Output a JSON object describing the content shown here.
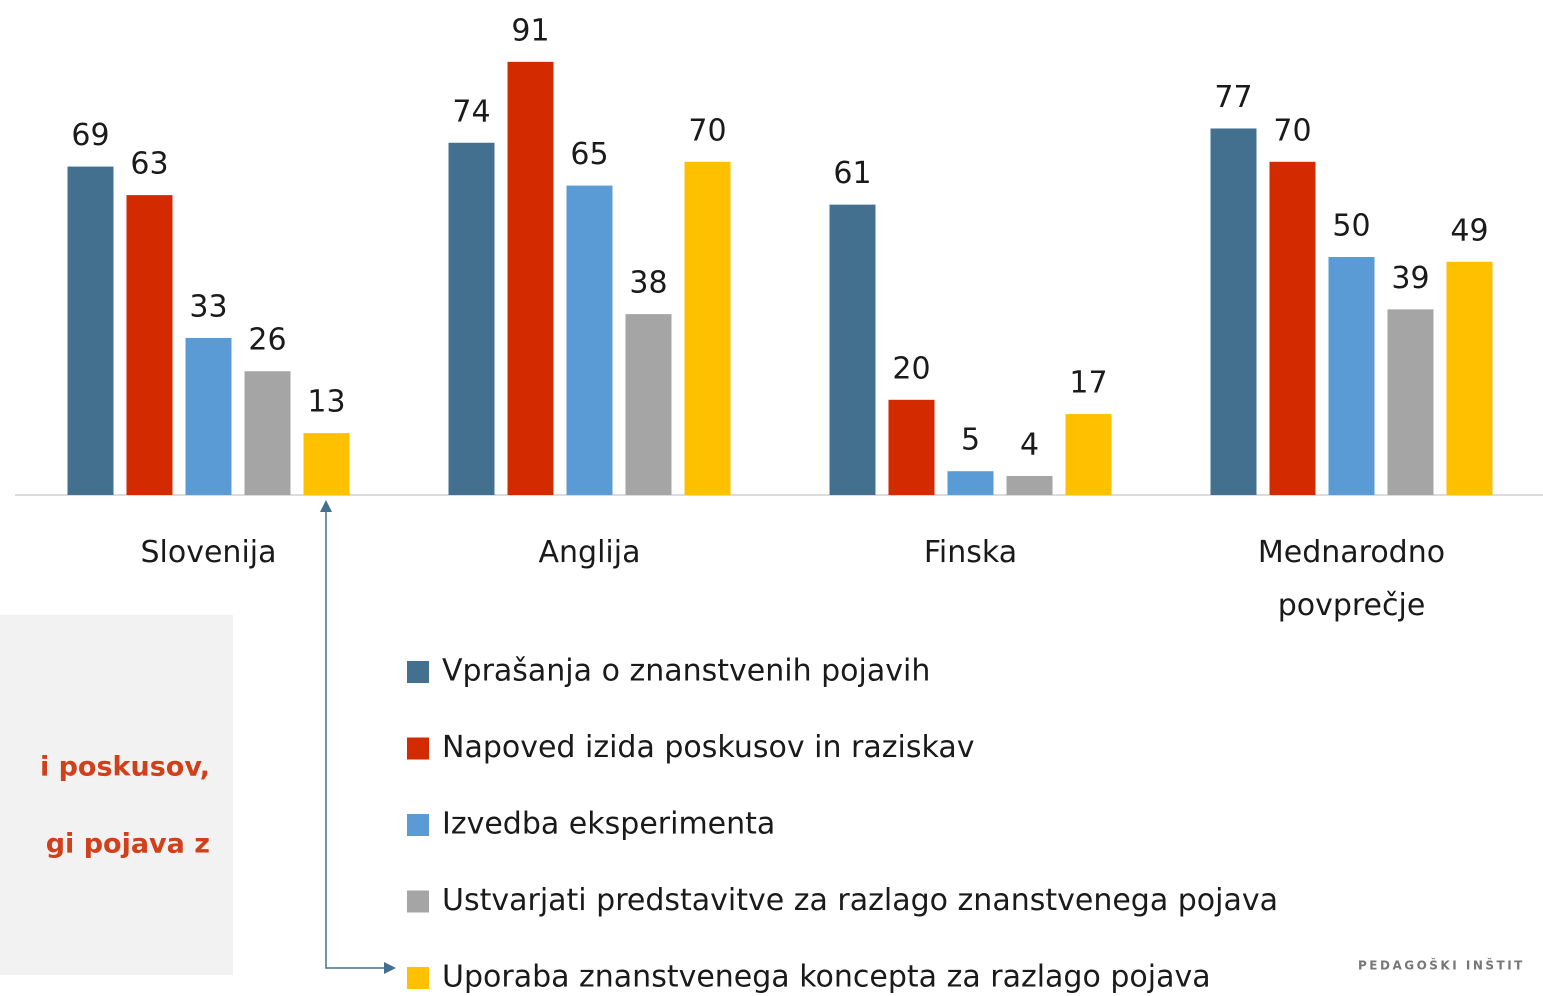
{
  "chart_data": {
    "type": "bar",
    "categories": [
      "Slovenija",
      "Anglija",
      "Finska",
      "Mednarodno povprečje"
    ],
    "series": [
      {
        "name": "Vprašanja o znanstvenih pojavih",
        "color": "#43708f",
        "values": [
          69,
          74,
          61,
          77
        ]
      },
      {
        "name": "Napoved izida poskusov in raziskav",
        "color": "#d42a00",
        "values": [
          63,
          91,
          20,
          70
        ]
      },
      {
        "name": "Izvedba eksperimenta",
        "color": "#5b9bd5",
        "values": [
          33,
          65,
          5,
          50
        ]
      },
      {
        "name": "Ustvarjati predstavitve za razlago znanstvenega pojava",
        "color": "#a5a5a5",
        "values": [
          26,
          38,
          4,
          39
        ]
      },
      {
        "name": "Uporaba znanstvenega koncepta za razlago pojava",
        "color": "#ffc000",
        "values": [
          13,
          70,
          17,
          49
        ]
      }
    ],
    "ylim": [
      0,
      100
    ],
    "legend": "bottom",
    "annotations": [
      "i poskusov,",
      "gi pojava z",
      "PEDAGOŠKI INŠTIT"
    ]
  }
}
